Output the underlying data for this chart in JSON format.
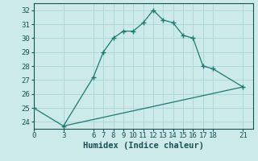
{
  "xlabel": "Humidex (Indice chaleur)",
  "bg_color": "#cceaea",
  "line_color": "#1a7a6e",
  "xlim": [
    0,
    22
  ],
  "ylim": [
    23.5,
    32.5
  ],
  "xticks": [
    0,
    3,
    6,
    7,
    8,
    9,
    10,
    11,
    12,
    13,
    14,
    15,
    16,
    17,
    18,
    21
  ],
  "yticks": [
    24,
    25,
    26,
    27,
    28,
    29,
    30,
    31,
    32
  ],
  "line1_x": [
    0,
    3,
    6,
    7,
    8,
    9,
    10,
    11,
    12,
    13,
    14,
    15,
    16,
    17,
    18,
    21
  ],
  "line1_y": [
    25.0,
    23.7,
    27.2,
    29.0,
    30.0,
    30.5,
    30.5,
    31.1,
    32.0,
    31.3,
    31.1,
    30.2,
    30.0,
    28.0,
    27.8,
    26.5
  ],
  "line2_x": [
    3,
    21
  ],
  "line2_y": [
    23.7,
    26.5
  ],
  "grid_color": "#aad4d4",
  "font_color": "#1a5050",
  "tick_fontsize": 6.5,
  "xlabel_fontsize": 7.5
}
